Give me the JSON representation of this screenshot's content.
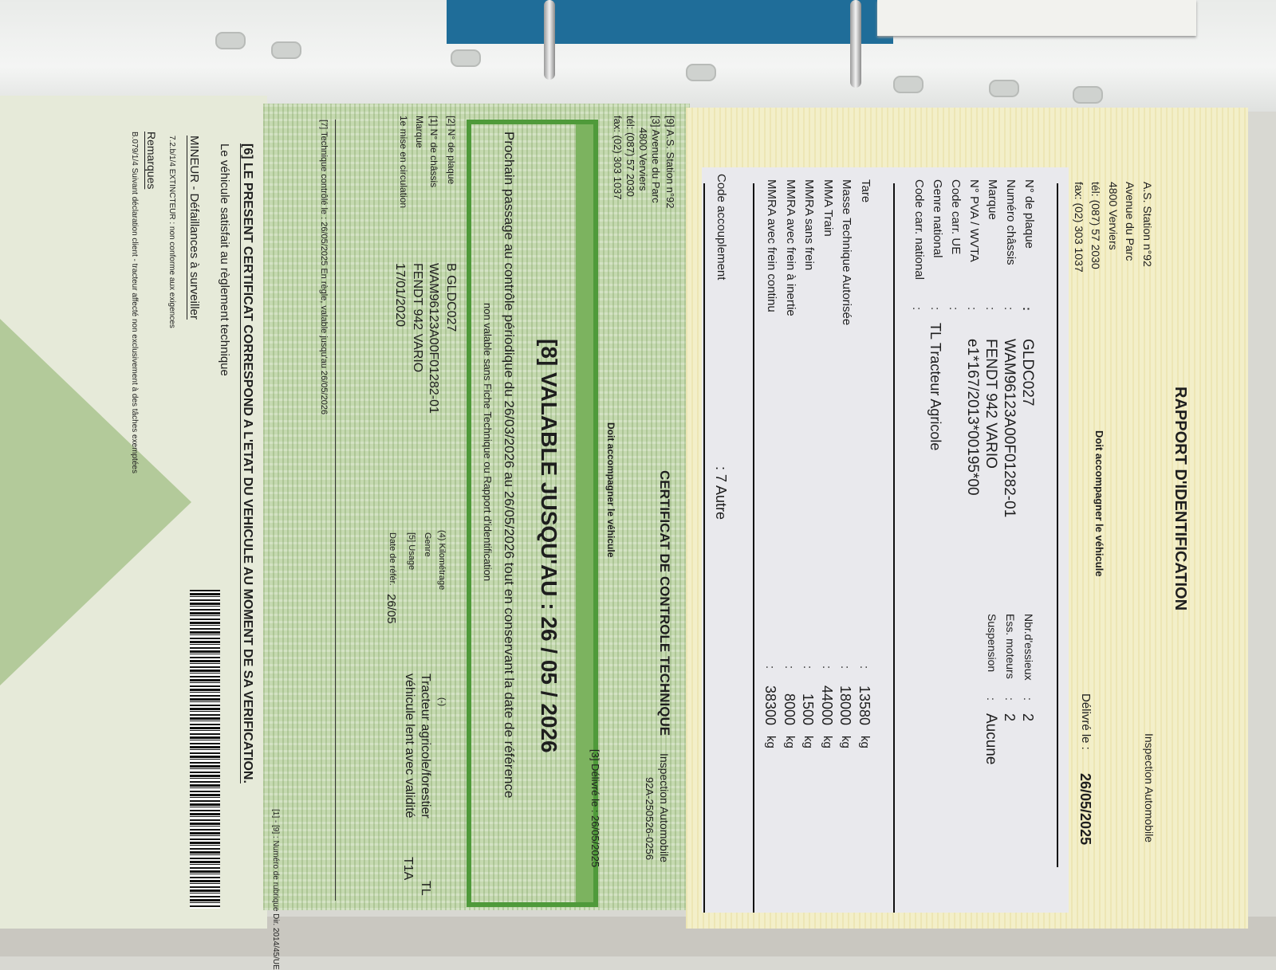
{
  "rapport": {
    "title": "RAPPORT D'IDENTIFICATION",
    "org": "Inspection Automobile",
    "station": "A.S.     Station n°92",
    "address": "Avenue du Parc",
    "city": "4800  Verviers",
    "tel": "tél: (087) 57 2030",
    "fax": "fax: (02) 303 1037",
    "must_accompany": "Doit accompagner le véhicule",
    "issued_label": "Délivré le :",
    "issued_date": "26/05/2025",
    "fields": [
      {
        "label": "N° de plaque",
        "value": "GLDC027"
      },
      {
        "label": "Numéro châssis",
        "value": "WAM96123A00F01282-01"
      },
      {
        "label": "Marque",
        "value": "FENDT 942 VARIO"
      },
      {
        "label": "N° PVA / WVTA",
        "value": "e1*167/2013*00195*00"
      },
      {
        "label": "Code carr. UE",
        "value": ""
      },
      {
        "label": "Genre national",
        "value": "TL      Tracteur Agricole"
      },
      {
        "label": "Code carr. national",
        "value": ""
      }
    ],
    "side_fields": [
      {
        "label": "Nbr.d'essieux",
        "value": "2"
      },
      {
        "label": "Ess. moteurs",
        "value": "2"
      },
      {
        "label": "Suspension",
        "value": "Aucune"
      }
    ],
    "masses": [
      {
        "label": "Tare",
        "value": "13580",
        "unit": "kg"
      },
      {
        "label": "Masse Technique Autorisée",
        "value": "18000",
        "unit": "kg"
      },
      {
        "label": "MMA Train",
        "value": "44000",
        "unit": "kg"
      },
      {
        "label": "MMRA sans frein",
        "value": "1500",
        "unit": "kg"
      },
      {
        "label": "MMRA avec frein à inertie",
        "value": "8000",
        "unit": "kg"
      },
      {
        "label": "MMRA avec frein continu",
        "value": "38300",
        "unit": "kg"
      }
    ],
    "coupling_label": "Code accouplement",
    "coupling_value": ":   7  Autre"
  },
  "certificat": {
    "title": "CERTIFICAT DE CONTROLE TECHNIQUE",
    "station": "[9] A.S.      Station n°92",
    "address": "[3] Avenue du Parc",
    "city": "4800  Verviers",
    "tel": "tél: (087) 57 2030",
    "fax": "fax: (02) 303 1037",
    "must_accompany": "Doit accompagner le véhicule",
    "org": "Inspection Automobile",
    "ref": "92A-250526-0256",
    "issued": "[3] Délivré le : 26/05/2025",
    "valid_until": "[8] VALABLE JUSQU'AU : 26 / 05 / 2026",
    "next_check": "Prochain passage au contrôle périodique du 26/03/2026 au 26/05/2026 tout en conservant la date de référence",
    "not_valid": "non valable sans Fiche Technique ou Rapport d'identification",
    "left_fields": [
      {
        "label": "[2] N° de plaque",
        "value": "B GLDC027"
      },
      {
        "label": "[1] N° de châssis",
        "value": "WAM96123A00F01282-01"
      },
      {
        "label": "Marque",
        "value": "FENDT 942 VARIO"
      },
      {
        "label": "1e mise en circulation",
        "value": "17/01/2020"
      }
    ],
    "right_fields": [
      {
        "label": "(4) Kilométrage",
        "value": "(-)",
        "code": ""
      },
      {
        "label": "Genre",
        "value": "Tracteur agricole/forestier",
        "code": "TL"
      },
      {
        "label": "[5] Usage",
        "value": "véhicule lent avec validité",
        "code": "T1A"
      },
      {
        "label": "Date de référ.",
        "value": "26/05",
        "code": ""
      }
    ],
    "technical": "[7] Technique   contrôlé le : 26/05/2025     En règle, valable jusqu'au   26/05/2026",
    "footnote": "[1] - [9] : Numéro de rubrique Dir. 2014/45/UE",
    "statement": "[6] LE PRESENT CERTIFICAT CORRESPOND A L'ETAT DU VEHICULE AU MOMENT DE SA VERIFICATION.",
    "satisfies": "Le véhicule satisfait au règlement technique",
    "minor_heading": "MINEUR - Défaillances à surveiller",
    "minor_item": "7.2.b/1/4      EXTINCTEUR : non conforme aux exigences",
    "remarks_heading": "Remarques",
    "remarks_item": "B.079/1/4    Suivant déclaration client - tracteur affecté non exclusivement à des tâches exemptées"
  },
  "colors": {
    "certificate_green": "#4f9a3a",
    "rapport_yellow": "#f3efc9"
  }
}
